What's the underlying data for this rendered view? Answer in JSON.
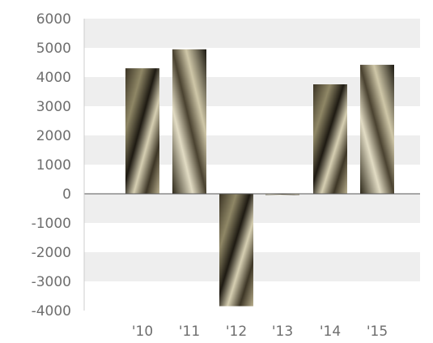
{
  "chart_data": {
    "type": "bar",
    "categories": [
      "'10",
      "'11",
      "'12",
      "'13",
      "'14",
      "'15"
    ],
    "values": [
      4300,
      4950,
      -3850,
      -30,
      3750,
      4420
    ],
    "title": "",
    "xlabel": "",
    "ylabel": "",
    "ylim": [
      -4000,
      6000
    ],
    "yticks": [
      6000,
      5000,
      4000,
      3000,
      2000,
      1000,
      0,
      -1000,
      -2000,
      -3000,
      -4000
    ],
    "ytick_labels": [
      "6000",
      "5000",
      "4000",
      "3000",
      "2000",
      "1000",
      "0",
      "-1000",
      "-2000",
      "-3000",
      "-4000"
    ],
    "grid": "alternating horizontal bands",
    "legend": "none",
    "colors": {
      "band": "#eeeeee",
      "axis": "#555555",
      "tick_text": "#6e6e6e",
      "bar_fill_dark": "#2a2418",
      "bar_fill_light": "#c9c0a4"
    }
  }
}
